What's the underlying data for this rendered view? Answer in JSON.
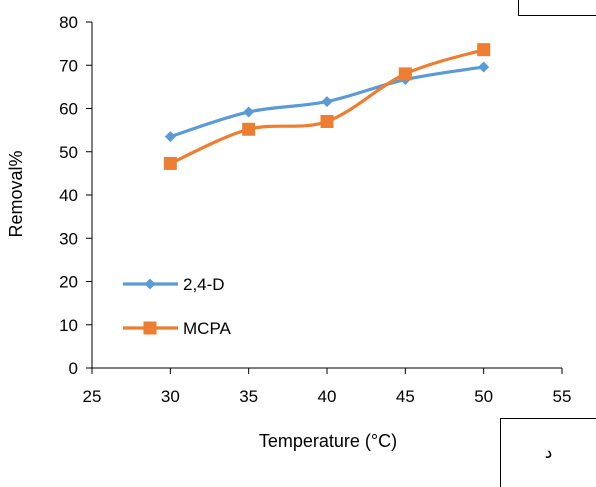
{
  "chart_data": {
    "type": "line",
    "title": "",
    "xlabel": "Temperature (°C)",
    "ylabel": "Removal%",
    "xlim": [
      25,
      55
    ],
    "ylim": [
      0,
      80
    ],
    "xticks": [
      "25",
      "30",
      "35",
      "40",
      "45",
      "50",
      "55"
    ],
    "yticks": [
      "0",
      "10",
      "20",
      "30",
      "40",
      "50",
      "60",
      "70",
      "80"
    ],
    "x": [
      30,
      35,
      40,
      45,
      50
    ],
    "series": [
      {
        "name": "2,4-D",
        "values": [
          53.5,
          59.2,
          61.6,
          66.7,
          69.6
        ],
        "color": "#5b9bd5",
        "marker": "diamond"
      },
      {
        "name": "MCPA",
        "values": [
          47.3,
          55.2,
          57.0,
          68.0,
          73.6
        ],
        "color": "#ed7d31",
        "marker": "square"
      }
    ],
    "legend_position": "bottom-left",
    "grid": false
  },
  "box_label": "د"
}
